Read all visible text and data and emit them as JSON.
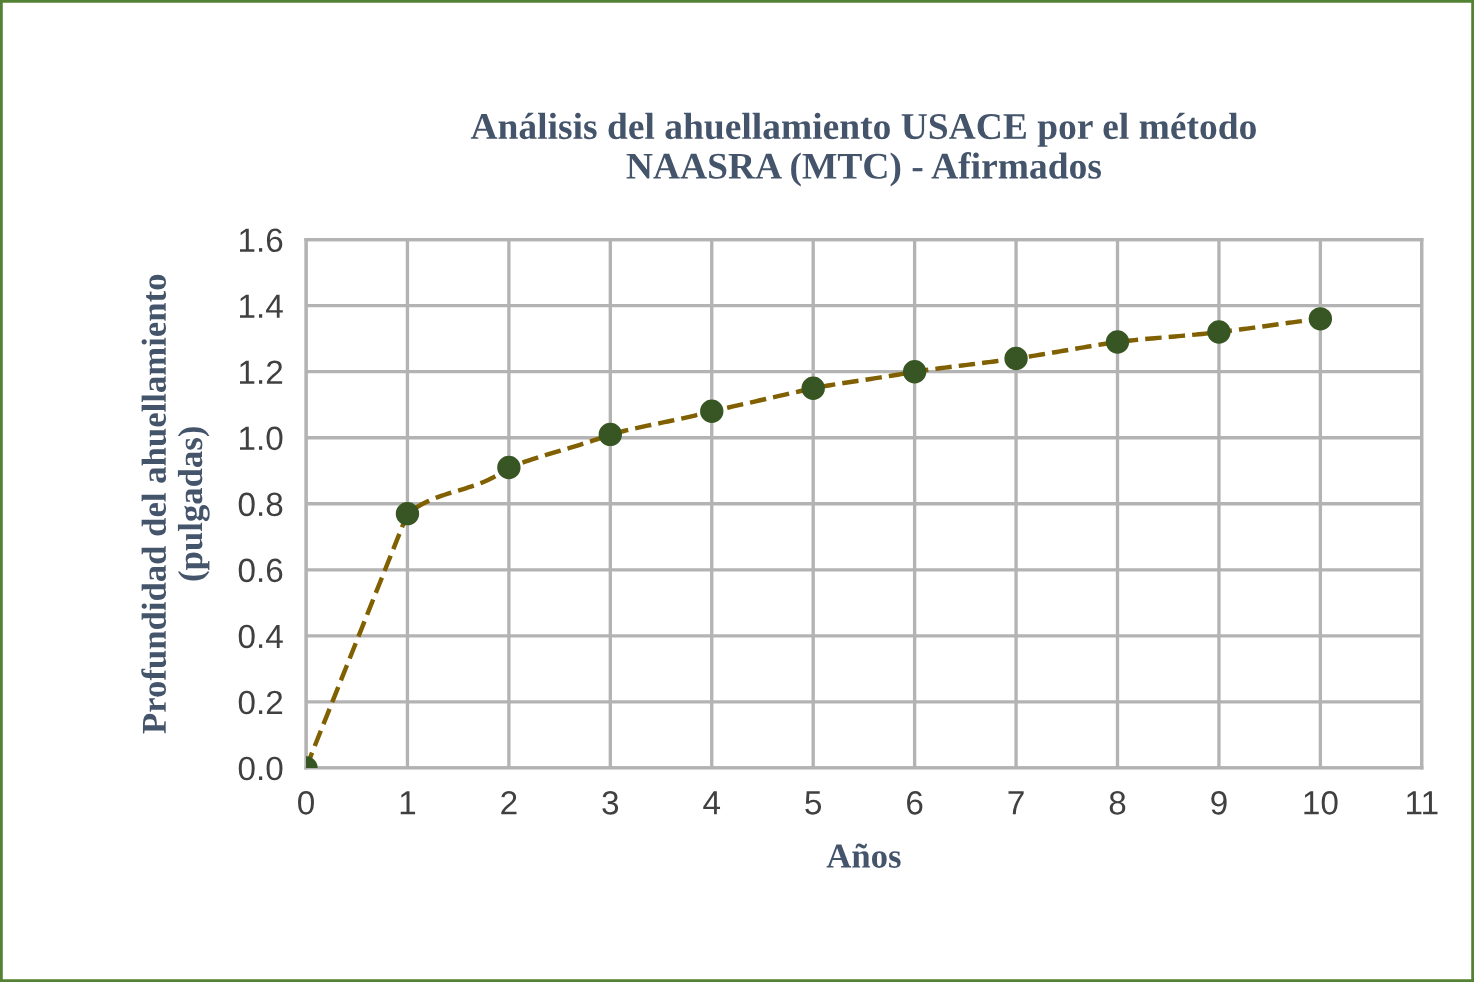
{
  "chart_data": {
    "type": "line",
    "title": "Análisis del ahuellamiento USACE por el método\nNAASRA (MTC) - Afirmados",
    "xlabel": "Años",
    "ylabel": "Profundidad del ahuellamiento\n(pulgadas)",
    "x": [
      0,
      1,
      2,
      3,
      4,
      5,
      6,
      7,
      8,
      9,
      10
    ],
    "series": [
      {
        "color": "#806000",
        "line_style": "dashed",
        "marker": "none",
        "values": [
          0.0,
          0.77,
          0.91,
          1.01,
          1.08,
          1.15,
          1.2,
          1.24,
          1.29,
          1.32,
          1.36
        ]
      },
      {
        "type": "scatter",
        "color": "#375623",
        "marker": "circle",
        "values": [
          0.0,
          0.77,
          0.91,
          1.01,
          1.08,
          1.15,
          1.2,
          1.24,
          1.29,
          1.32,
          1.36
        ]
      }
    ],
    "xlim": [
      0,
      11
    ],
    "xticks": [
      0,
      1,
      2,
      3,
      4,
      5,
      6,
      7,
      8,
      9,
      10,
      11
    ],
    "ylim": [
      0,
      1.6
    ],
    "yticks": [
      {
        "value": 0,
        "label": "0.0"
      },
      {
        "value": 0.2,
        "label": "0.2"
      },
      {
        "value": 0.4,
        "label": "0.4"
      },
      {
        "value": 0.6,
        "label": "0.6"
      },
      {
        "value": 0.8,
        "label": "0.8"
      },
      {
        "value": 1.0,
        "label": "1.0"
      },
      {
        "value": 1.2,
        "label": "1.2"
      },
      {
        "value": 1.4,
        "label": "1.4"
      },
      {
        "value": 1.6,
        "label": "1.6"
      }
    ],
    "grid": true,
    "legend": false
  }
}
